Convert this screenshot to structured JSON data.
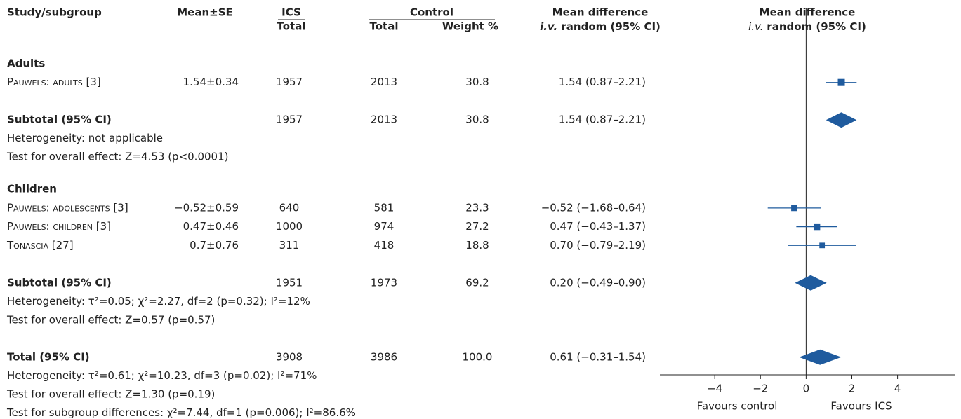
{
  "chart_data": {
    "type": "forest",
    "color": "#1f5b9e",
    "columns": {
      "study": "Study/subgroup",
      "mean_se": "Mean±SE",
      "ics": "ICS",
      "ics_total": "Total",
      "control": "Control",
      "control_total": "Total",
      "weight": "Weight %",
      "md": "Mean difference",
      "md_method_italic": "i.v.",
      "md_method": "random (95% CI)",
      "plot_title": "Mean difference",
      "plot_method_italic": "i.v.",
      "plot_method": "random (95% CI)"
    },
    "groups": [
      {
        "name": "Adults",
        "studies": [
          {
            "name": "Pauwels: adults [3]",
            "mean_se": "1.54±0.34",
            "ics_total": 1957,
            "control_total": 2013,
            "weight": "30.8",
            "md_label": "1.54 (0.87–2.21)",
            "md": 1.54,
            "ci": [
              0.87,
              2.21
            ]
          }
        ],
        "subtotal": {
          "label": "Subtotal (95% CI)",
          "ics_total": 1957,
          "control_total": 2013,
          "weight": "30.8",
          "md_label": "1.54 (0.87–2.21)",
          "md": 1.54,
          "ci": [
            0.87,
            2.21
          ],
          "notes": [
            "Heterogeneity: not applicable",
            "Test for overall effect: Z=4.53 (p<0.0001)"
          ]
        }
      },
      {
        "name": "Children",
        "studies": [
          {
            "name": "Pauwels: adolescents [3]",
            "mean_se": "−0.52±0.59",
            "ics_total": 640,
            "control_total": 581,
            "weight": "23.3",
            "md_label": "−0.52 (−1.68–0.64)",
            "md": -0.52,
            "ci": [
              -1.68,
              0.64
            ]
          },
          {
            "name": "Pauwels: children [3]",
            "mean_se": "0.47±0.46",
            "ics_total": 1000,
            "control_total": 974,
            "weight": "27.2",
            "md_label": "0.47 (−0.43–1.37)",
            "md": 0.47,
            "ci": [
              -0.43,
              1.37
            ]
          },
          {
            "name": "Tonascia [27]",
            "mean_se": "0.7±0.76",
            "ics_total": 311,
            "control_total": 418,
            "weight": "18.8",
            "md_label": "0.70 (−0.79–2.19)",
            "md": 0.7,
            "ci": [
              -0.79,
              2.19
            ]
          }
        ],
        "subtotal": {
          "label": "Subtotal (95% CI)",
          "ics_total": 1951,
          "control_total": 1973,
          "weight": "69.2",
          "md_label": "0.20 (−0.49–0.90)",
          "md": 0.2,
          "ci": [
            -0.49,
            0.9
          ],
          "notes": [
            "Heterogeneity: τ²=0.05; χ²=2.27, df=2 (p=0.32); I²=12%",
            "Test for overall effect: Z=0.57 (p=0.57)"
          ]
        }
      }
    ],
    "total": {
      "label": "Total (95% CI)",
      "ics_total": 3908,
      "control_total": 3986,
      "weight": "100.0",
      "md_label": "0.61 (−0.31–1.54)",
      "md": 0.61,
      "ci": [
        -0.31,
        1.54
      ],
      "notes": [
        "Heterogeneity: τ²=0.61; χ²=10.23, df=3 (p=0.02); I²=71%",
        "Test for overall effect: Z=1.30 (p=0.19)",
        "Test for subgroup differences: χ²=7.44, df=1 (p=0.006); I²=86.6%"
      ]
    },
    "xlim": [
      -6.4,
      6.5
    ],
    "xticks": [
      {
        "value": -4,
        "label": "−4"
      },
      {
        "value": -2,
        "label": "−2"
      },
      0,
      2,
      4
    ],
    "favours": [
      "Favours control",
      "Favours ICS"
    ]
  }
}
